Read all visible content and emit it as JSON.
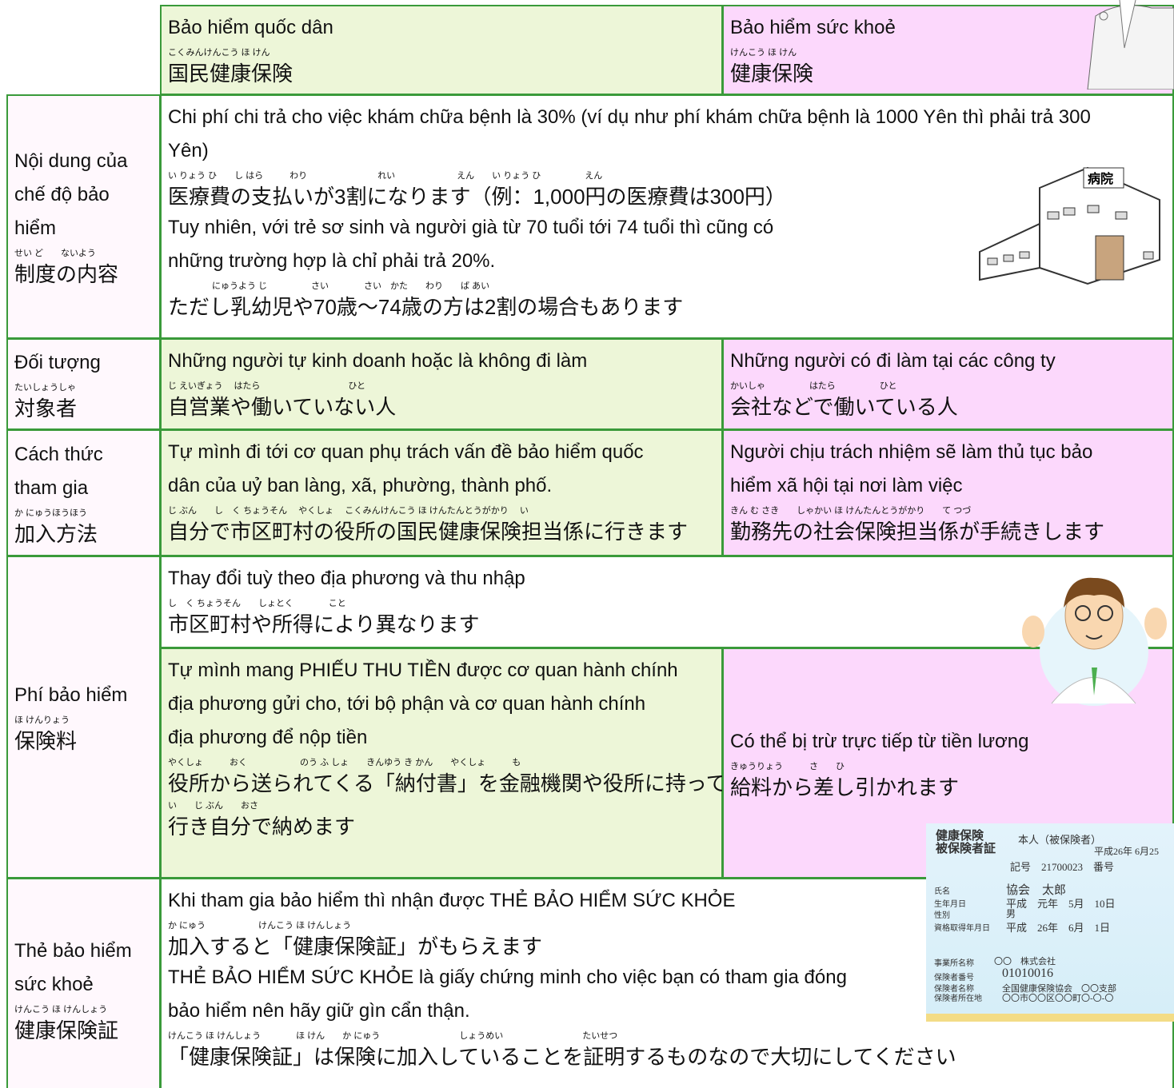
{
  "header": {
    "national": {
      "vi": [
        "Bảo hiểm quốc dân"
      ],
      "ja": [
        {
          "ruby": "こくみんけんこう ほ けん",
          "text": "国民健康保険"
        }
      ]
    },
    "employee": {
      "vi": [
        "Bảo hiểm sức khoẻ"
      ],
      "ja": [
        {
          "ruby": "けんこう ほ けん",
          "text": "健康保険"
        }
      ]
    }
  },
  "rows": [
    {
      "label": {
        "vi": [
          "Nội dung của",
          "chế độ bảo",
          "hiểm"
        ],
        "ja": [
          {
            "ruby": "せい ど　　ないよう",
            "text": "制度の内容"
          }
        ]
      },
      "content": [
        {
          "vi": [
            "Chi phí chi trả cho việc khám chữa bệnh là 30% (ví dụ như phí khám chữa bệnh là 1000 Yên thì phải trả 300",
            "Yên)"
          ],
          "ja": [
            {
              "ruby": "い りょう ひ　　し はら　　　わり　　　　　　　　れい　　　　　　　えん　　い りょう ひ　　　　　えん",
              "text": "医療費の支払いが3割になります（例：1,000円の医療費は300円）"
            }
          ]
        },
        {
          "vi": [
            "Tuy nhiên, với trẻ sơ sinh và người già từ 70 tuổi tới 74 tuổi thì cũng có",
            "những trường hợp là chỉ phải trả 20%."
          ],
          "ja": [
            {
              "ruby": "　　　　　にゅうよう じ　　　　　さい　　　　さい　かた　　わり　　ば あい",
              "text": "ただし乳幼児や70歳〜74歳の方は2割の場合もあります"
            }
          ]
        }
      ]
    },
    {
      "label": {
        "vi": [
          "Đối tượng"
        ],
        "ja": [
          {
            "ruby": "たいしょうしゃ",
            "text": "対象者"
          }
        ]
      },
      "national": [
        {
          "vi": [
            "Những người tự kinh doanh hoặc là không đi làm"
          ],
          "ja": [
            {
              "ruby": "じ えいぎょう　 はたら　　　　　　　　　　ひと",
              "text": "自営業や働いていない人"
            }
          ]
        }
      ],
      "employee": [
        {
          "vi": [
            "Những người có đi làm tại các công ty"
          ],
          "ja": [
            {
              "ruby": "かいしゃ　　　　　はたら　　　　　ひと",
              "text": "会社などで働いている人"
            }
          ]
        }
      ]
    },
    {
      "label": {
        "vi": [
          "Cách thức",
          "tham gia"
        ],
        "ja": [
          {
            "ruby": "か にゅうほうほう",
            "text": "加入方法"
          }
        ]
      },
      "national": [
        {
          "vi": [
            "Tự mình đi tới cơ quan phụ trách vấn đề bảo hiểm quốc",
            "dân của uỷ ban làng, xã, phường, thành phố."
          ],
          "ja": [
            {
              "ruby": "じ ぶん　　し　く ちょうそん　 やくしょ　 こくみんけんこう ほ けんたんとうがかり　 い",
              "text": "自分で市区町村の役所の国民健康保険担当係に行きます"
            }
          ]
        }
      ],
      "employee": [
        {
          "vi": [
            "Người chịu trách nhiệm sẽ làm thủ tục bảo",
            "hiểm xã hội tại nơi làm việc"
          ],
          "ja": [
            {
              "ruby": "きん む さき　　しゃかい ほ けんたんとうがかり　　て つづ",
              "text": "勤務先の社会保険担当係が手続きします"
            }
          ]
        }
      ]
    },
    {
      "label": {
        "vi": [
          "Phí bảo hiểm"
        ],
        "ja": [
          {
            "ruby": "ほ けんりょう",
            "text": "保険料"
          }
        ]
      },
      "content": [
        {
          "vi": [
            "Thay đổi tuỳ theo địa phương và thu nhập"
          ],
          "ja": [
            {
              "ruby": "し　く ちょうそん　　しょとく　　　　こと",
              "text": "市区町村や所得により異なります"
            }
          ]
        }
      ],
      "national": [
        {
          "vi": [
            "Tự mình mang PHIẾU THU TIỀN được cơ quan hành chính",
            "địa phương gửi cho, tới bộ phận và cơ quan hành chính",
            "địa phương để nộp tiền"
          ],
          "ja": [
            {
              "ruby": "やくしょ　　　おく　　　　　　のう ふ しょ　　きんゆう き かん　　やくしょ　　　も",
              "text": "役所から送られてくる「納付書」を金融機関や役所に持って"
            },
            {
              "ruby": "い　　じ ぶん　　おさ",
              "text": "行き自分で納めます"
            }
          ]
        }
      ],
      "employee": [
        {
          "vi": [
            "Có thể bị trừ trực tiếp từ tiền lương"
          ],
          "ja": [
            {
              "ruby": "きゅうりょう　　　さ　　ひ",
              "text": "給料から差し引かれます"
            }
          ]
        }
      ]
    },
    {
      "label": {
        "vi": [
          "Thẻ bảo hiểm",
          "sức khoẻ"
        ],
        "ja": [
          {
            "ruby": "けんこう ほ けんしょう",
            "text": "健康保険証"
          }
        ]
      },
      "content": [
        {
          "vi": [
            "Khi tham gia bảo hiểm thì nhận được THẺ BẢO HIỂM SỨC KHỎE"
          ],
          "ja": [
            {
              "ruby": "か にゅう　　　　　　けんこう ほ けんしょう",
              "text": "加入すると「健康保険証」がもらえます"
            }
          ]
        },
        {
          "vi": [
            "THẺ BẢO HIỂM SỨC KHỎE là giấy chứng minh cho việc bạn có tham gia đóng",
            "bảo hiểm nên hãy giữ gìn cẩn thận."
          ],
          "ja": [
            {
              "ruby": "けんこう ほ けんしょう　　　　ほ けん　　か にゅう　　　　　　　　　しょうめい　　　　　　　　　たいせつ",
              "text": "「健康保険証」は保険に加入していることを証明するものなので大切にしてください"
            }
          ]
        }
      ]
    }
  ],
  "card": {
    "lines": [
      "健康保険",
      "被保険者証",
      "本人（被保険者）",
      "平成26年 6月25",
      "記号　21700023　番号",
      "氏名",
      "協会　太郎",
      "生年月日",
      "平成　元年　5月　10日",
      "性別",
      "男",
      "資格取得年月日",
      "平成　26年　6月　1日",
      "事業所名称",
      "〇〇　株式会社",
      "保険者番号",
      "01010016",
      "保険者名称",
      "全国健康保険協会　〇〇支部",
      "保険者所在地",
      "〇〇市〇〇区〇〇町〇-〇-〇"
    ]
  }
}
